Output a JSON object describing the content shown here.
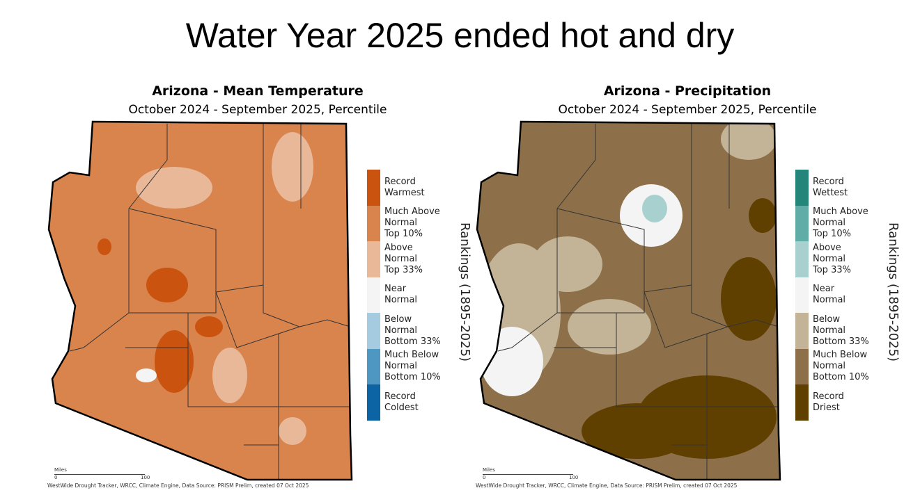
{
  "slide_title": "Water Year 2025 ended hot and dry",
  "maps": [
    {
      "title": "Arizona - Mean Temperature",
      "subtitle": "October 2024 - September 2025, Percentile",
      "rankings_label": "Rankings (1895-2025)",
      "base_color": "#d9834d",
      "legend": [
        {
          "label": "Record\nWarmest",
          "color": "#c9530f"
        },
        {
          "label": "Much Above\nNormal\nTop 10%",
          "color": "#d9834d"
        },
        {
          "label": "Above\nNormal\nTop 33%",
          "color": "#e9b899"
        },
        {
          "label": "Near\nNormal",
          "color": "#f4f4f4"
        },
        {
          "label": "Below\nNormal\nBottom 33%",
          "color": "#a5cbe0"
        },
        {
          "label": "Much Below\nNormal\nBottom 10%",
          "color": "#4f97c3"
        },
        {
          "label": "Record\nColdest",
          "color": "#0d64a4"
        }
      ],
      "scale_unit": "Miles",
      "scale_start": "0",
      "scale_end": "100",
      "credit": "WestWide Drought Tracker, WRCC, Climate Engine, Data Source: PRISM Prelim, created 07 Oct 2025"
    },
    {
      "title": "Arizona - Precipitation",
      "subtitle": "October 2024 - September 2025, Percentile",
      "rankings_label": "Rankings (1895-2025)",
      "base_color": "#8d7049",
      "legend": [
        {
          "label": "Record\nWettest",
          "color": "#24857b"
        },
        {
          "label": "Much Above\nNormal\nTop 10%",
          "color": "#5fada6"
        },
        {
          "label": "Above\nNormal\nTop 33%",
          "color": "#a8d0cf"
        },
        {
          "label": "Near\nNormal",
          "color": "#f4f4f4"
        },
        {
          "label": "Below\nNormal\nBottom 33%",
          "color": "#c3b397"
        },
        {
          "label": "Much Below\nNormal\nBottom 10%",
          "color": "#8d7049"
        },
        {
          "label": "Record\nDriest",
          "color": "#604000"
        }
      ],
      "scale_unit": "Miles",
      "scale_start": "0",
      "scale_end": "100",
      "credit": "WestWide Drought Tracker, WRCC, Climate Engine, Data Source: PRISM Prelim, created 07 Oct 2025"
    }
  ]
}
